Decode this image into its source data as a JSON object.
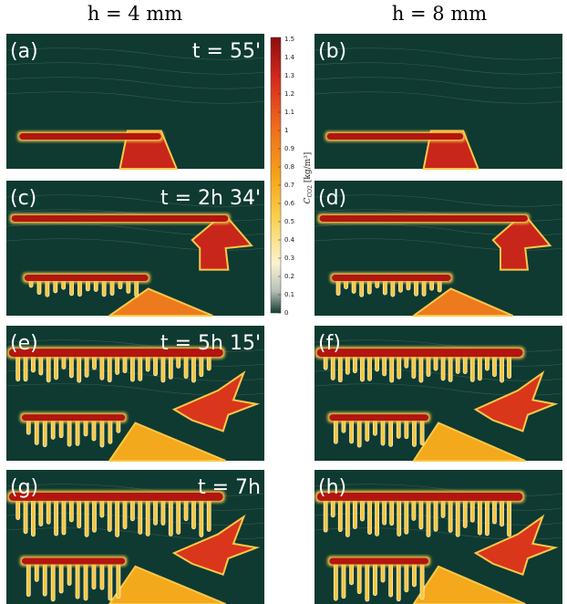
{
  "headers": [
    "h = 4 mm",
    "h = 8 mm"
  ],
  "panels": [
    {
      "label": "(a)",
      "time": "t = 55'"
    },
    {
      "label": "(b)"
    },
    {
      "label": "(c)",
      "time": "t = 2h 34'"
    },
    {
      "label": "(d)"
    },
    {
      "label": "(e)",
      "time": "t = 5h 15'"
    },
    {
      "label": "(f)"
    },
    {
      "label": "(g)",
      "time": "t = 7h"
    },
    {
      "label": "(h)"
    }
  ],
  "colorbar": {
    "symbol": "C",
    "subscript": "CO2",
    "unit": "[kg/m³]",
    "lim": [
      0,
      1.5
    ],
    "ticks": [
      0,
      0.1,
      0.2,
      0.3,
      0.4,
      0.5,
      0.6,
      0.7,
      0.8,
      0.9,
      1,
      1.1,
      1.2,
      1.3,
      1.4,
      1.5
    ]
  }
}
